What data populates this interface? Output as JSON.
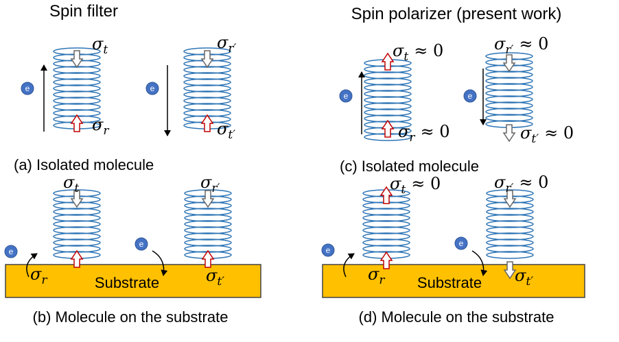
{
  "header": {
    "left": "Spin filter",
    "right": "Spin polarizer (present work)"
  },
  "panels": [
    {
      "caption": "(a) Isolated molecule",
      "electrons": [
        "e",
        "e"
      ],
      "symbols": [
        {
          "base": "σ",
          "sub": "t"
        },
        {
          "base": "σ",
          "sub": "r"
        },
        {
          "base": "σ",
          "sub": "r′"
        },
        {
          "base": "σ",
          "sub": "t′"
        }
      ]
    },
    {
      "caption": "(b) Molecule on the substrate",
      "substrate": "Substrate",
      "electrons": [
        "e",
        "e"
      ],
      "symbols": [
        {
          "base": "σ",
          "sub": "t"
        },
        {
          "base": "σ",
          "sub": "r"
        },
        {
          "base": "σ",
          "sub": "r′"
        },
        {
          "base": "σ",
          "sub": "t′"
        }
      ]
    },
    {
      "caption": "(c) Isolated molecule",
      "electrons": [
        "e",
        "e"
      ],
      "symbols": [
        {
          "base": "σ",
          "sub": "t",
          "approx": "≈ 0"
        },
        {
          "base": "σ",
          "sub": "r",
          "approx": "≈ 0"
        },
        {
          "base": "σ",
          "sub": "r′",
          "approx": "≈ 0"
        },
        {
          "base": "σ",
          "sub": "t′",
          "approx": "≈ 0"
        }
      ]
    },
    {
      "caption": "(d) Molecule on the substrate",
      "substrate": "Substrate",
      "electrons": [
        "e",
        "e"
      ],
      "symbols": [
        {
          "base": "σ",
          "sub": "t",
          "approx": "≈ 0"
        },
        {
          "base": "σ",
          "sub": "r"
        },
        {
          "base": "σ",
          "sub": "r′",
          "approx": "≈ 0"
        },
        {
          "base": "σ",
          "sub": "t′"
        }
      ]
    }
  ]
}
